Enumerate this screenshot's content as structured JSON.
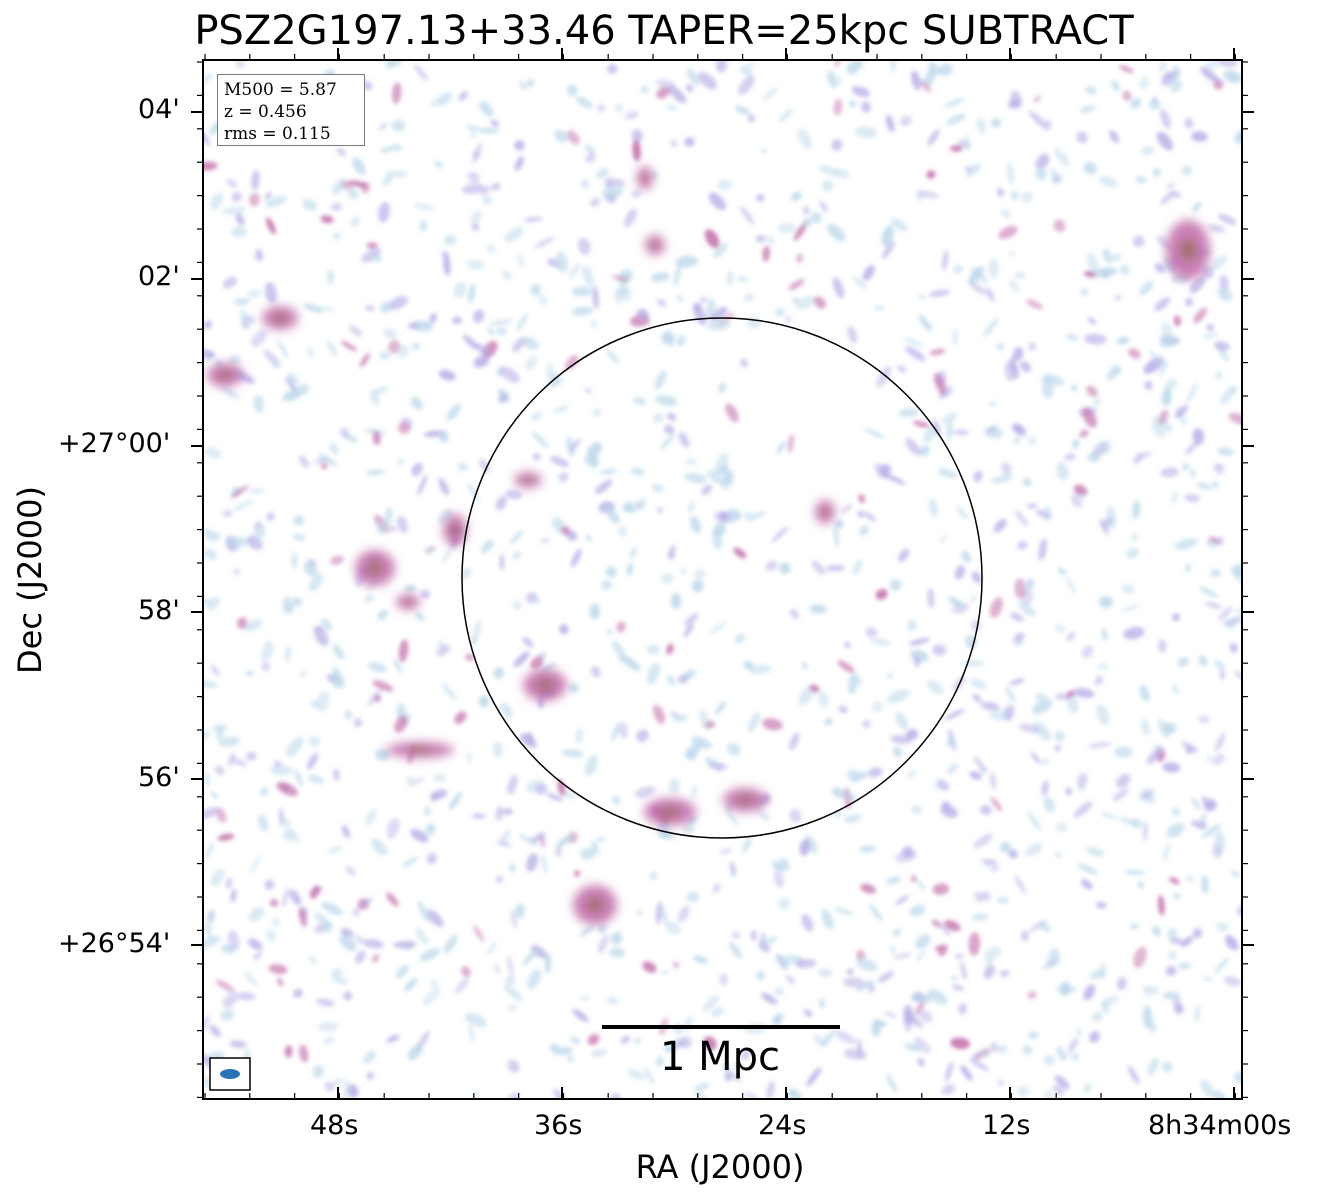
{
  "title": "PSZ2G197.13+33.46 TAPER=25kpc SUBTRACT",
  "info": {
    "m500": "M500 = 5.87",
    "z": "z = 0.456",
    "rms": "rms = 0.115"
  },
  "axes": {
    "xlabel": "RA (J2000)",
    "ylabel": "Dec (J2000)",
    "x_ticks": [
      "48s",
      "36s",
      "24s",
      "12s",
      "8h34m00s"
    ],
    "y_ticks": [
      "04'",
      "02'",
      "+27°00'",
      "58'",
      "56'",
      "+26°54'"
    ]
  },
  "scalebar": {
    "label": "1 Mpc"
  },
  "colors": {
    "noise_light": "#bcd8ea",
    "noise_mid": "#b6aee6",
    "emission": "#c06aa8",
    "peak": "#8e6a3a",
    "beam": "#2b73b8"
  }
}
